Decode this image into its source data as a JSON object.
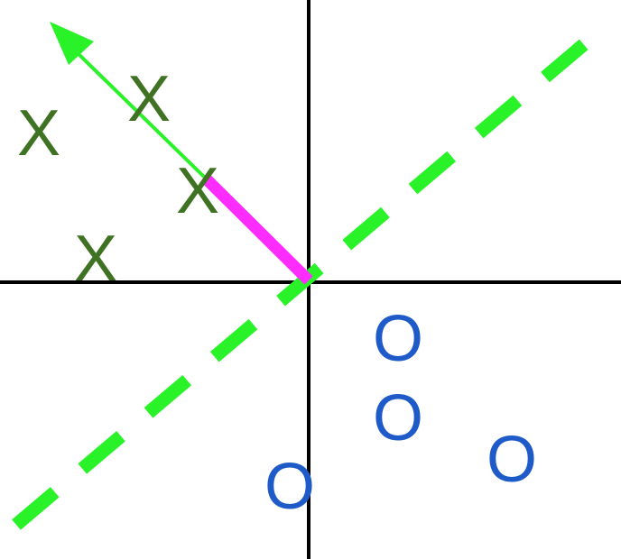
{
  "diagram": {
    "title": "",
    "colors": {
      "background": "#ffffff",
      "axes": "#000000",
      "class_x": "#3f7222",
      "class_o": "#1f5bc8",
      "decision_boundary": "#29f229",
      "normal_vector": "#29f229",
      "projection_segment": "#ff2cff"
    },
    "axes": {
      "horizontal": "x-axis",
      "vertical": "y-axis"
    },
    "class_x": {
      "label": "X",
      "points": [
        "X",
        "X",
        "X",
        "X"
      ]
    },
    "class_o": {
      "label": "O",
      "points": [
        "O",
        "O",
        "O",
        "O"
      ]
    },
    "decision_boundary": {
      "style": "dashed",
      "icon": "dashed-line"
    },
    "normal_vector": {
      "icon": "arrow-icon"
    },
    "projection_segment": {
      "icon": "thick-segment"
    }
  }
}
